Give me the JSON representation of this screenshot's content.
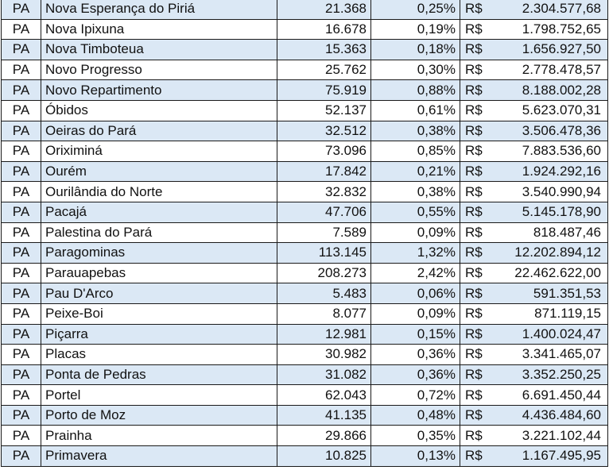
{
  "rows": [
    {
      "uf": "PA",
      "municipio": "Nova Esperança do Piriá",
      "populacao": "21.368",
      "percentual": "0,25%",
      "moeda": "R$",
      "valor": "2.304.577,68"
    },
    {
      "uf": "PA",
      "municipio": "Nova Ipixuna",
      "populacao": "16.678",
      "percentual": "0,19%",
      "moeda": "R$",
      "valor": "1.798.752,65"
    },
    {
      "uf": "PA",
      "municipio": "Nova Timboteua",
      "populacao": "15.363",
      "percentual": "0,18%",
      "moeda": "R$",
      "valor": "1.656.927,50"
    },
    {
      "uf": "PA",
      "municipio": "Novo Progresso",
      "populacao": "25.762",
      "percentual": "0,30%",
      "moeda": "R$",
      "valor": "2.778.478,57"
    },
    {
      "uf": "PA",
      "municipio": "Novo Repartimento",
      "populacao": "75.919",
      "percentual": "0,88%",
      "moeda": "R$",
      "valor": "8.188.002,28"
    },
    {
      "uf": "PA",
      "municipio": "Óbidos",
      "populacao": "52.137",
      "percentual": "0,61%",
      "moeda": "R$",
      "valor": "5.623.070,31"
    },
    {
      "uf": "PA",
      "municipio": "Oeiras do Pará",
      "populacao": "32.512",
      "percentual": "0,38%",
      "moeda": "R$",
      "valor": "3.506.478,36"
    },
    {
      "uf": "PA",
      "municipio": "Oriximiná",
      "populacao": "73.096",
      "percentual": "0,85%",
      "moeda": "R$",
      "valor": "7.883.536,60"
    },
    {
      "uf": "PA",
      "municipio": "Ourém",
      "populacao": "17.842",
      "percentual": "0,21%",
      "moeda": "R$",
      "valor": "1.924.292,16"
    },
    {
      "uf": "PA",
      "municipio": "Ourilândia do Norte",
      "populacao": "32.832",
      "percentual": "0,38%",
      "moeda": "R$",
      "valor": "3.540.990,94"
    },
    {
      "uf": "PA",
      "municipio": "Pacajá",
      "populacao": "47.706",
      "percentual": "0,55%",
      "moeda": "R$",
      "valor": "5.145.178,90"
    },
    {
      "uf": "PA",
      "municipio": "Palestina do Pará",
      "populacao": "7.589",
      "percentual": "0,09%",
      "moeda": "R$",
      "valor": "818.487,46"
    },
    {
      "uf": "PA",
      "municipio": "Paragominas",
      "populacao": "113.145",
      "percentual": "1,32%",
      "moeda": "R$",
      "valor": "12.202.894,12"
    },
    {
      "uf": "PA",
      "municipio": "Parauapebas",
      "populacao": "208.273",
      "percentual": "2,42%",
      "moeda": "R$",
      "valor": "22.462.622,00"
    },
    {
      "uf": "PA",
      "municipio": "Pau D'Arco",
      "populacao": "5.483",
      "percentual": "0,06%",
      "moeda": "R$",
      "valor": "591.351,53"
    },
    {
      "uf": "PA",
      "municipio": "Peixe-Boi",
      "populacao": "8.077",
      "percentual": "0,09%",
      "moeda": "R$",
      "valor": "871.119,15"
    },
    {
      "uf": "PA",
      "municipio": "Piçarra",
      "populacao": "12.981",
      "percentual": "0,15%",
      "moeda": "R$",
      "valor": "1.400.024,47"
    },
    {
      "uf": "PA",
      "municipio": "Placas",
      "populacao": "30.982",
      "percentual": "0,36%",
      "moeda": "R$",
      "valor": "3.341.465,07"
    },
    {
      "uf": "PA",
      "municipio": "Ponta de Pedras",
      "populacao": "31.082",
      "percentual": "0,36%",
      "moeda": "R$",
      "valor": "3.352.250,25"
    },
    {
      "uf": "PA",
      "municipio": "Portel",
      "populacao": "62.043",
      "percentual": "0,72%",
      "moeda": "R$",
      "valor": "6.691.450,44"
    },
    {
      "uf": "PA",
      "municipio": "Porto de Moz",
      "populacao": "41.135",
      "percentual": "0,48%",
      "moeda": "R$",
      "valor": "4.436.484,60"
    },
    {
      "uf": "PA",
      "municipio": "Prainha",
      "populacao": "29.866",
      "percentual": "0,35%",
      "moeda": "R$",
      "valor": "3.221.102,44"
    },
    {
      "uf": "PA",
      "municipio": "Primavera",
      "populacao": "10.825",
      "percentual": "0,13%",
      "moeda": "R$",
      "valor": "1.167.495,95"
    }
  ],
  "colors": {
    "stripe": "#dbe8f5",
    "plain": "#ffffff",
    "border": "#1a1a1a"
  }
}
